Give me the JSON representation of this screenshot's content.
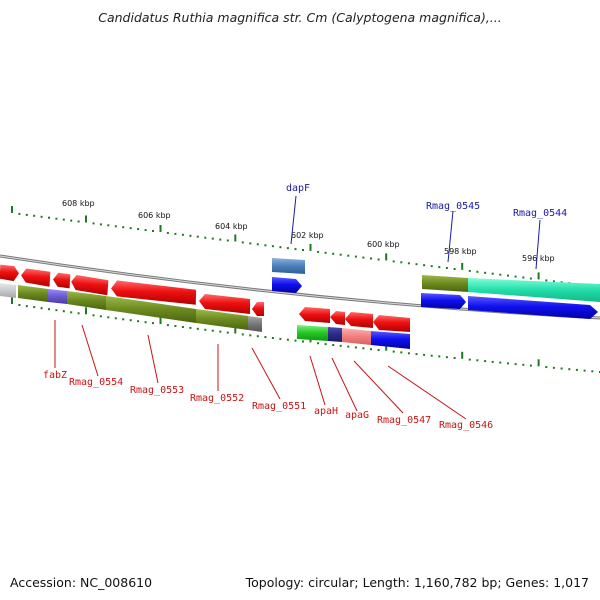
{
  "title": "Candidatus Ruthia magnifica str. Cm (Calyptogena magnifica),...",
  "footer": {
    "accession": "Accession: NC_008610",
    "summary": "Topology: circular; Length: 1,160,782 bp; Genes: 1,017"
  },
  "scale_ticks": [
    {
      "label": "608 kbp"
    },
    {
      "label": "606 kbp"
    },
    {
      "label": "604 kbp"
    },
    {
      "label": "602 kbp"
    },
    {
      "label": "600 kbp"
    },
    {
      "label": "598 kbp"
    },
    {
      "label": "596 kbp"
    }
  ],
  "top_gene_labels": [
    "dapF",
    "Rmag_0545",
    "Rmag_0544"
  ],
  "bottom_gene_labels": [
    "fabZ",
    "Rmag_0554",
    "Rmag_0553",
    "Rmag_0552",
    "Rmag_0551",
    "apaH",
    "apaG",
    "Rmag_0547",
    "Rmag_0546"
  ],
  "colors": {
    "forward_red": "#ee1111",
    "reverse_blue": "#1111dd",
    "olive": "#6b8a1e",
    "teal": "#22ddaa",
    "backbone": "#888888",
    "tick_green": "#1e7a1e",
    "top_label": "#1a1aa6",
    "bottom_label": "#c81414"
  }
}
